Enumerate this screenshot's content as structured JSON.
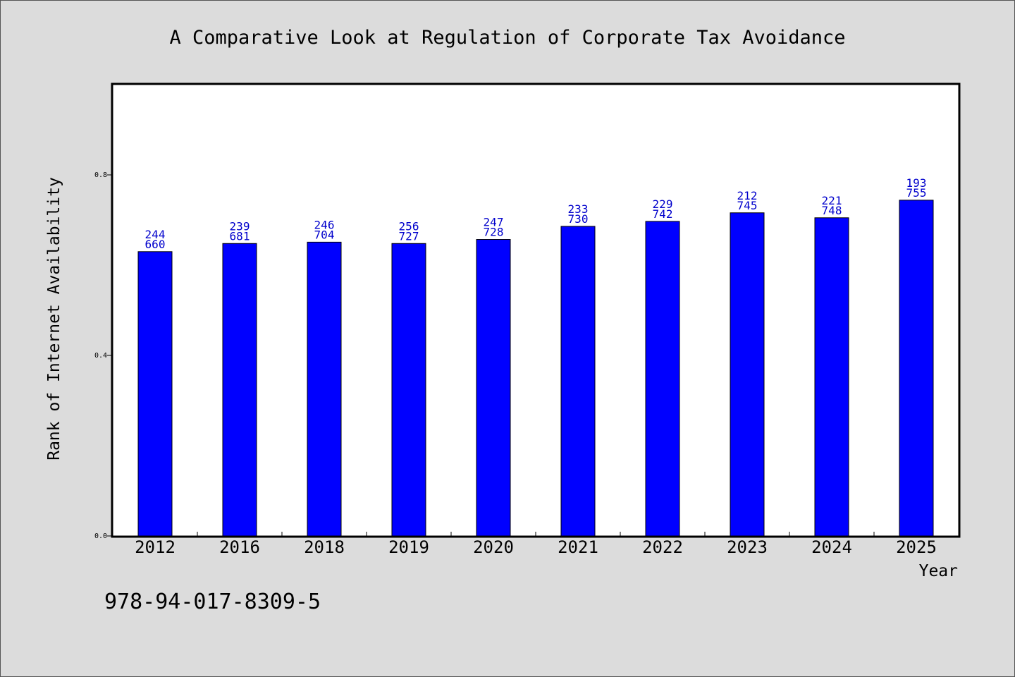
{
  "chart_data": {
    "type": "bar",
    "title": "A Comparative Look at Regulation of Corporate Tax Avoidance",
    "xlabel": "Year",
    "ylabel": "Rank of Internet Availability",
    "categories": [
      "2012",
      "2016",
      "2018",
      "2019",
      "2020",
      "2021",
      "2022",
      "2023",
      "2024",
      "2025"
    ],
    "values": [
      0.63,
      0.648,
      0.651,
      0.648,
      0.657,
      0.686,
      0.697,
      0.716,
      0.705,
      0.744
    ],
    "label_top": [
      "244",
      "239",
      "246",
      "256",
      "247",
      "233",
      "229",
      "212",
      "221",
      "193"
    ],
    "label_bottom": [
      "660",
      "681",
      "704",
      "727",
      "728",
      "730",
      "742",
      "745",
      "748",
      "755"
    ],
    "ylim": [
      0,
      1.0
    ],
    "yticks": [
      0.0,
      0.4,
      0.8
    ],
    "ytick_labels": [
      "0.0",
      "0.4",
      "0.8"
    ],
    "bar_color": "#0000ff",
    "label_color": "#0000cc",
    "background_color": "#dcdcdc",
    "plot_background_color": "#ffffff",
    "grid": false,
    "legend": "none"
  },
  "footer": {
    "isbn": "978-94-017-8309-5"
  }
}
